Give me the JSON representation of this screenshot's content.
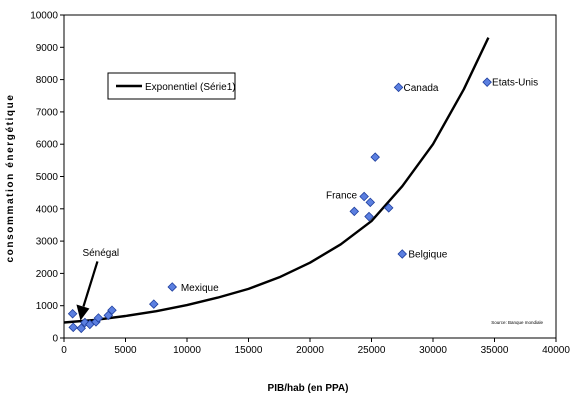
{
  "chart_data": {
    "type": "scatter",
    "xlabel": "PIB/hab (en PPA)",
    "ylabel": "consommation énergétique",
    "xlim": [
      0,
      40000
    ],
    "ylim": [
      0,
      10000
    ],
    "xticks": [
      0,
      5000,
      10000,
      15000,
      20000,
      25000,
      30000,
      35000,
      40000
    ],
    "yticks": [
      0,
      1000,
      2000,
      3000,
      4000,
      5000,
      6000,
      7000,
      8000,
      9000,
      10000
    ],
    "grid": false,
    "legend_position": "top-left",
    "marker_color": "#5b7fe0",
    "points": [
      {
        "x": 700,
        "y": 750
      },
      {
        "x": 750,
        "y": 330
      },
      {
        "x": 1400,
        "y": 300
      },
      {
        "x": 1700,
        "y": 480
      },
      {
        "x": 2100,
        "y": 420
      },
      {
        "x": 2600,
        "y": 500
      },
      {
        "x": 2800,
        "y": 620
      },
      {
        "x": 3600,
        "y": 700
      },
      {
        "x": 3900,
        "y": 860
      },
      {
        "x": 7300,
        "y": 1050
      },
      {
        "x": 8800,
        "y": 1580
      },
      {
        "x": 23600,
        "y": 3920
      },
      {
        "x": 24400,
        "y": 4380
      },
      {
        "x": 24800,
        "y": 3760
      },
      {
        "x": 24900,
        "y": 4200
      },
      {
        "x": 25300,
        "y": 5600
      },
      {
        "x": 26400,
        "y": 4030
      },
      {
        "x": 27200,
        "y": 7760
      },
      {
        "x": 27500,
        "y": 2600
      },
      {
        "x": 34400,
        "y": 7920
      }
    ],
    "series": [
      {
        "name": "Exponentiel (Série1)",
        "type": "line",
        "color": "#000000",
        "x": [
          0,
          2500,
          5000,
          7500,
          10000,
          12500,
          15000,
          17500,
          20000,
          22500,
          25000,
          27500,
          30000,
          32500,
          34500
        ],
        "y": [
          480,
          560,
          680,
          830,
          1020,
          1250,
          1520,
          1880,
          2330,
          2900,
          3620,
          4700,
          6000,
          7700,
          9300
        ]
      }
    ],
    "annotations": [
      {
        "text": "Sénégal",
        "x": 1500,
        "y": 2650,
        "arrow_to": {
          "x": 1500,
          "y": 480
        }
      },
      {
        "text": "Mexique",
        "x": 9500,
        "y": 1560
      },
      {
        "text": "France",
        "x": 21300,
        "y": 4420
      },
      {
        "text": "Canada",
        "x": 27600,
        "y": 7760
      },
      {
        "text": "Etats-Unis",
        "x": 34800,
        "y": 7920
      },
      {
        "text": "Belgique",
        "x": 28000,
        "y": 2600
      }
    ],
    "source": "Source: Banque mondiale"
  }
}
